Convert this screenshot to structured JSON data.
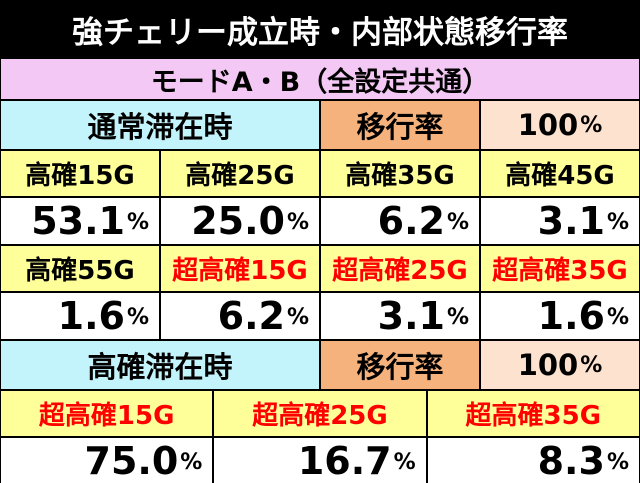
{
  "title": "強チェリー成立時・内部状態移行率",
  "mode": "モードA・B（全設定共通）",
  "sections": [
    {
      "state": "通常滞在時",
      "rate_label": "移行率",
      "rate_total": {
        "value": "100",
        "unit": "%"
      },
      "rows": [
        [
          {
            "label": "高確15G",
            "value": "53.1",
            "unit": "%"
          },
          {
            "label": "高確25G",
            "value": "25.0",
            "unit": "%"
          },
          {
            "label": "高確35G",
            "value": "6.2",
            "unit": "%"
          },
          {
            "label": "高確45G",
            "value": "3.1",
            "unit": "%"
          }
        ],
        [
          {
            "label": "高確55G",
            "value": "1.6",
            "unit": "%"
          },
          {
            "label": "超高確15G",
            "value": "6.2",
            "unit": "%",
            "color": "#ff0000"
          },
          {
            "label": "超高確25G",
            "value": "3.1",
            "unit": "%",
            "color": "#ff0000"
          },
          {
            "label": "超高確35G",
            "value": "1.6",
            "unit": "%",
            "color": "#ff0000"
          }
        ]
      ]
    },
    {
      "state": "高確滞在時",
      "rate_label": "移行率",
      "rate_total": {
        "value": "100",
        "unit": "%"
      },
      "rows": [
        [
          {
            "label": "超高確15G",
            "value": "75.0",
            "unit": "%",
            "color": "#ff0000"
          },
          {
            "label": "超高確25G",
            "value": "16.7",
            "unit": "%",
            "color": "#ff0000"
          },
          {
            "label": "超高確35G",
            "value": "8.3",
            "unit": "%",
            "color": "#ff0000"
          }
        ]
      ]
    }
  ]
}
